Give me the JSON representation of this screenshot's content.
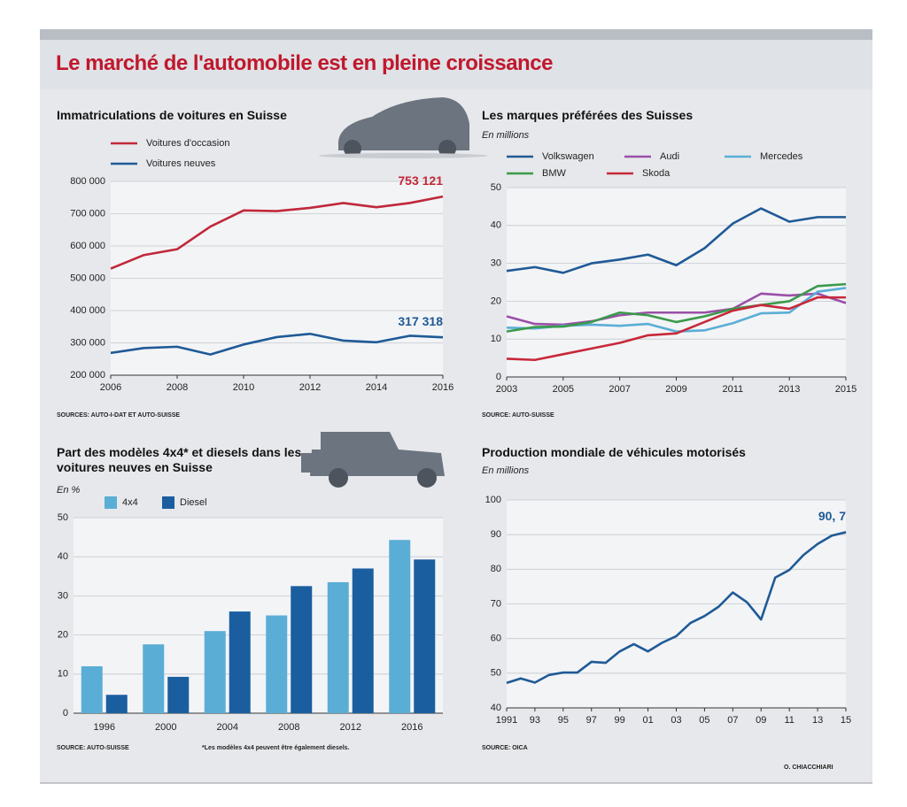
{
  "title": "Le marché de l'automobile est en pleine croissance",
  "credit": "O. CHIACCHIARI",
  "chart_data": [
    {
      "type": "line",
      "title": "Immatriculations de voitures en Suisse",
      "source": "SOURCES: AUTO-I-DAT ET AUTO-SUISSE",
      "x": [
        2006,
        2007,
        2008,
        2009,
        2010,
        2011,
        2012,
        2013,
        2014,
        2015,
        2016
      ],
      "series": [
        {
          "name": "Voitures d'occasion",
          "color": "#c0283a",
          "values": [
            530000,
            572000,
            590000,
            660000,
            710000,
            708000,
            718000,
            733000,
            720000,
            733000,
            753121
          ],
          "value_labels": [
            null,
            null,
            null,
            null,
            null,
            null,
            null,
            null,
            null,
            null,
            "753 121"
          ]
        },
        {
          "name": "Voitures neuves",
          "color": "#1f5a96",
          "values": [
            269000,
            284000,
            288000,
            264000,
            295000,
            318000,
            328000,
            307000,
            302000,
            322000,
            317318
          ],
          "value_labels": [
            null,
            null,
            null,
            null,
            null,
            null,
            null,
            null,
            null,
            null,
            "317 318"
          ]
        }
      ],
      "xlim": [
        2006,
        2016
      ],
      "xticks": [
        2006,
        2008,
        2010,
        2012,
        2014,
        2016
      ],
      "ylim": [
        200000,
        800000
      ],
      "yticks": [
        {
          "value": 200000,
          "label": "200 000"
        },
        {
          "value": 300000,
          "label": "300 000"
        },
        {
          "value": 400000,
          "label": "400 000"
        },
        {
          "value": 500000,
          "label": "500 000"
        },
        {
          "value": 600000,
          "label": "600 000"
        },
        {
          "value": 700000,
          "label": "700 000"
        },
        {
          "value": 800000,
          "label": "800 000"
        }
      ],
      "grid": true
    },
    {
      "type": "line",
      "title": "Les marques préférées des Suisses",
      "subtitle": "En millions",
      "source": "SOURCE: AUTO-SUISSE",
      "x": [
        2003,
        2004,
        2005,
        2006,
        2007,
        2008,
        2009,
        2010,
        2011,
        2012,
        2013,
        2014,
        2015
      ],
      "series": [
        {
          "name": "Volkswagen",
          "color": "#1f5a96",
          "values": [
            28,
            29,
            27.5,
            30,
            31,
            32.3,
            29.5,
            34,
            40.5,
            44.5,
            41,
            42.2,
            42.2
          ]
        },
        {
          "name": "Audi",
          "color": "#9b4fa8",
          "values": [
            16,
            14,
            13.8,
            14.7,
            16.3,
            17,
            17,
            17,
            18,
            22,
            21.5,
            22,
            19.5
          ]
        },
        {
          "name": "Mercedes",
          "color": "#5aaed6",
          "values": [
            13,
            12.8,
            13.5,
            13.8,
            13.5,
            14,
            12,
            12.3,
            14.2,
            16.8,
            17,
            22.5,
            23.5
          ]
        },
        {
          "name": "BMW",
          "color": "#3a9a4a",
          "values": [
            12,
            13.2,
            13.3,
            14.5,
            17,
            16.3,
            14.5,
            16,
            18,
            19,
            20,
            24,
            24.5
          ]
        },
        {
          "name": "Skoda",
          "color": "#c8283a",
          "values": [
            4.8,
            4.5,
            6,
            7.5,
            9,
            11,
            11.5,
            14.5,
            17.5,
            19,
            18,
            21,
            21
          ]
        }
      ],
      "xlim": [
        2003,
        2015
      ],
      "xticks": [
        2003,
        2005,
        2007,
        2009,
        2011,
        2013,
        2015
      ],
      "ylim": [
        0,
        50
      ],
      "yticks": [
        0,
        10,
        20,
        30,
        40,
        50
      ],
      "grid": true
    },
    {
      "type": "bar",
      "title": "Part des modèles 4x4* et diesels dans les voitures neuves en Suisse",
      "subtitle": "En %",
      "source": "SOURCE: AUTO-SUISSE",
      "note": "*Les modèles 4x4 peuvent être également diesels.",
      "categories": [
        "1996",
        "2000",
        "2004",
        "2008",
        "2012",
        "2016"
      ],
      "series": [
        {
          "name": "4x4",
          "color": "#5aaed6",
          "values": [
            12,
            17.6,
            21,
            25,
            33.5,
            44.3
          ]
        },
        {
          "name": "Diesel",
          "color": "#1a5ea0",
          "values": [
            4.7,
            9.3,
            26,
            32.5,
            37,
            39.3
          ]
        }
      ],
      "ylim": [
        0,
        50
      ],
      "yticks": [
        0,
        10,
        20,
        30,
        40,
        50
      ],
      "grid": true
    },
    {
      "type": "line",
      "title": "Production mondiale de véhicules motorisés",
      "subtitle": "En millions",
      "source": "SOURCE: OICA",
      "x": [
        1991,
        1992,
        1993,
        1994,
        1995,
        1996,
        1997,
        1998,
        1999,
        2000,
        2001,
        2002,
        2003,
        2004,
        2005,
        2006,
        2007,
        2008,
        2009,
        2010,
        2011,
        2012,
        2013,
        2014,
        2015
      ],
      "values": [
        47.2,
        48.5,
        47.3,
        49.5,
        50.2,
        50.2,
        53.3,
        53,
        56.3,
        58.4,
        56.3,
        58.8,
        60.7,
        64.5,
        66.5,
        69.2,
        73.3,
        70.5,
        65.5,
        77.6,
        79.8,
        84.1,
        87.3,
        89.7,
        90.7
      ],
      "value_labels": [
        null,
        null,
        null,
        null,
        null,
        null,
        null,
        null,
        null,
        null,
        null,
        null,
        null,
        null,
        null,
        null,
        null,
        null,
        null,
        null,
        null,
        null,
        null,
        null,
        "90, 7"
      ],
      "color": "#1f5a96",
      "xlim": [
        1991,
        2015
      ],
      "xticks": [
        1991,
        {
          "value": 1993,
          "label": "93"
        },
        {
          "value": 1995,
          "label": "95"
        },
        {
          "value": 1997,
          "label": "97"
        },
        {
          "value": 1999,
          "label": "99"
        },
        {
          "value": 2001,
          "label": "01"
        },
        {
          "value": 2003,
          "label": "03"
        },
        {
          "value": 2005,
          "label": "05"
        },
        {
          "value": 2007,
          "label": "07"
        },
        {
          "value": 2009,
          "label": "09"
        },
        {
          "value": 2011,
          "label": "11"
        },
        {
          "value": 2013,
          "label": "13"
        },
        {
          "value": 2015,
          "label": "15"
        }
      ],
      "ylim": [
        40,
        100
      ],
      "yticks": [
        40,
        50,
        60,
        70,
        80,
        90,
        100
      ],
      "grid": true
    }
  ]
}
